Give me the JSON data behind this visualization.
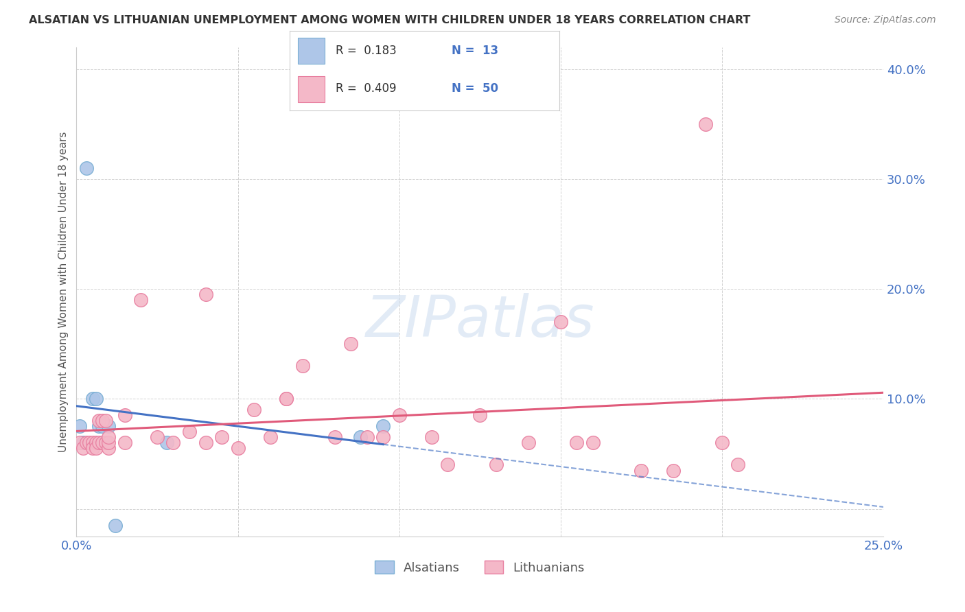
{
  "title": "ALSATIAN VS LITHUANIAN UNEMPLOYMENT AMONG WOMEN WITH CHILDREN UNDER 18 YEARS CORRELATION CHART",
  "source": "Source: ZipAtlas.com",
  "ylabel": "Unemployment Among Women with Children Under 18 years",
  "xlim": [
    0.0,
    0.25
  ],
  "ylim": [
    -0.025,
    0.42
  ],
  "background_color": "#ffffff",
  "grid_color": "#cccccc",
  "alsatian_color": "#aec6e8",
  "alsatian_edge": "#7aafd4",
  "alsatian_line_color": "#4472c4",
  "lithuanian_color": "#f4b8c8",
  "lithuanian_edge": "#e87fa0",
  "lithuanian_line_color": "#e05a7a",
  "alsatian_x": [
    0.001,
    0.002,
    0.003,
    0.005,
    0.006,
    0.007,
    0.008,
    0.009,
    0.01,
    0.012,
    0.028,
    0.088,
    0.095
  ],
  "alsatian_y": [
    0.075,
    0.06,
    0.31,
    0.1,
    0.1,
    0.075,
    0.075,
    0.06,
    0.075,
    -0.015,
    0.06,
    0.065,
    0.075
  ],
  "lithuanian_x": [
    0.001,
    0.002,
    0.003,
    0.004,
    0.005,
    0.005,
    0.006,
    0.006,
    0.007,
    0.007,
    0.008,
    0.008,
    0.009,
    0.009,
    0.01,
    0.01,
    0.01,
    0.015,
    0.015,
    0.02,
    0.025,
    0.03,
    0.035,
    0.04,
    0.04,
    0.045,
    0.05,
    0.055,
    0.06,
    0.065,
    0.065,
    0.07,
    0.08,
    0.085,
    0.09,
    0.095,
    0.1,
    0.11,
    0.115,
    0.125,
    0.13,
    0.14,
    0.15,
    0.155,
    0.16,
    0.175,
    0.185,
    0.195,
    0.2,
    0.205
  ],
  "lithuanian_y": [
    0.06,
    0.055,
    0.06,
    0.06,
    0.06,
    0.055,
    0.06,
    0.055,
    0.08,
    0.06,
    0.06,
    0.08,
    0.06,
    0.08,
    0.055,
    0.06,
    0.065,
    0.06,
    0.085,
    0.19,
    0.065,
    0.06,
    0.07,
    0.195,
    0.06,
    0.065,
    0.055,
    0.09,
    0.065,
    0.1,
    0.1,
    0.13,
    0.065,
    0.15,
    0.065,
    0.065,
    0.085,
    0.065,
    0.04,
    0.085,
    0.04,
    0.06,
    0.17,
    0.06,
    0.06,
    0.035,
    0.035,
    0.35,
    0.06,
    0.04
  ]
}
